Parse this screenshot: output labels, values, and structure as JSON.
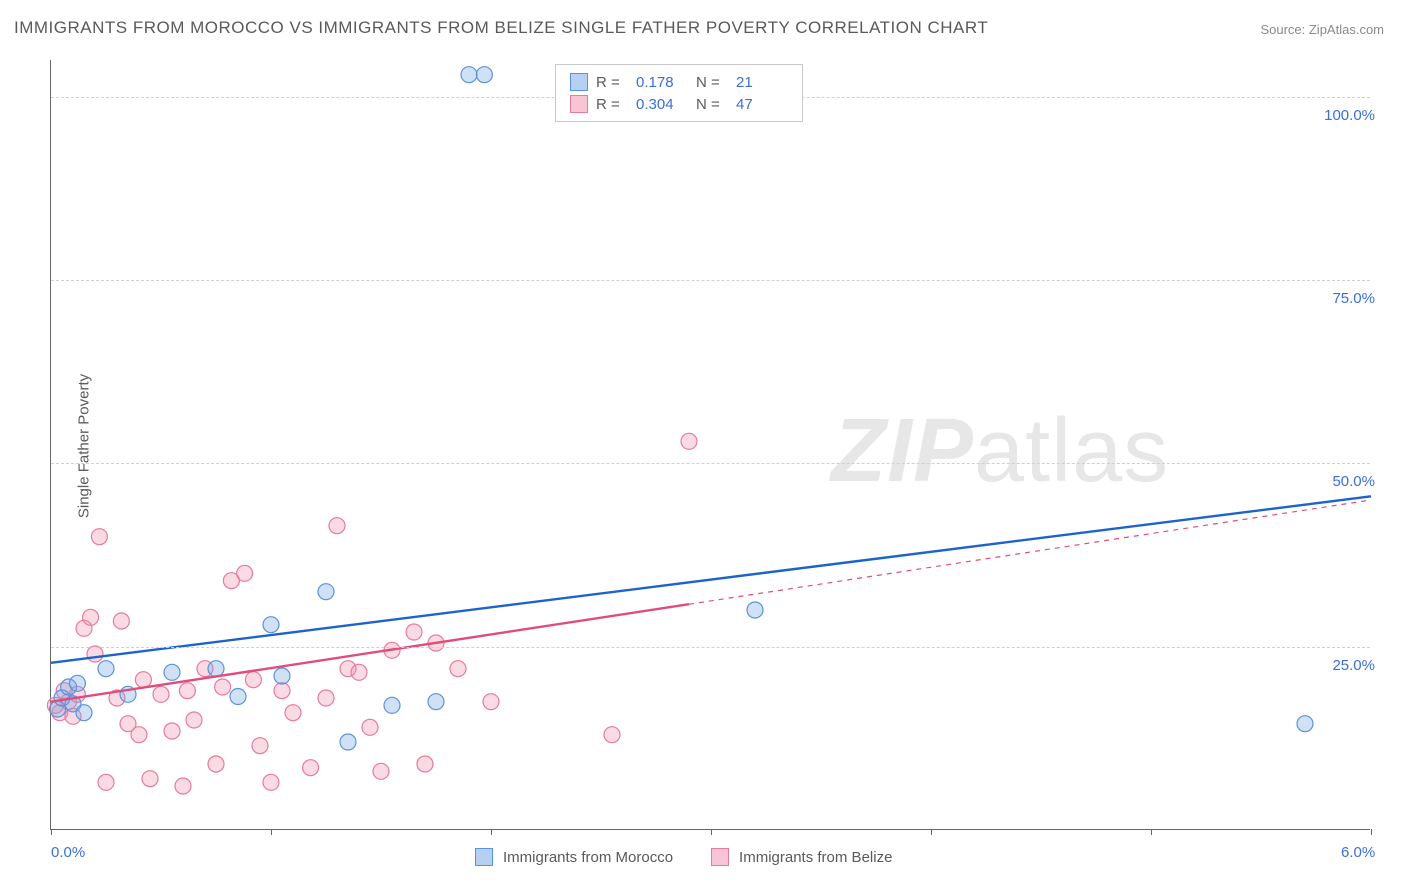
{
  "title": "IMMIGRANTS FROM MOROCCO VS IMMIGRANTS FROM BELIZE SINGLE FATHER POVERTY CORRELATION CHART",
  "source": "Source: ZipAtlas.com",
  "y_axis_label": "Single Father Poverty",
  "watermark": {
    "bold": "ZIP",
    "rest": "atlas"
  },
  "chart": {
    "type": "scatter",
    "xlim": [
      0.0,
      6.0
    ],
    "ylim": [
      0.0,
      105.0
    ],
    "x_ticks": [
      0.0,
      1.0,
      2.0,
      3.0,
      4.0,
      5.0,
      6.0
    ],
    "x_tick_labels_shown": {
      "0.0": "0.0%",
      "6.0": "6.0%"
    },
    "y_gridlines": [
      25.0,
      50.0,
      75.0,
      100.0
    ],
    "y_tick_labels": {
      "25.0": "25.0%",
      "50.0": "50.0%",
      "75.0": "75.0%",
      "100.0": "100.0%"
    },
    "grid_color": "#d0d0d0",
    "background_color": "#ffffff",
    "marker_radius": 8,
    "marker_stroke_width": 1.2,
    "trend_line_width": 2.4,
    "series": [
      {
        "name": "Immigrants from Morocco",
        "fill": "rgba(120,170,230,0.35)",
        "stroke": "#5b93db",
        "line_color": "#1d63c9",
        "R": "0.178",
        "N": "21",
        "trend": {
          "x1": 0.0,
          "y1": 22.8,
          "x2": 6.0,
          "y2": 45.5,
          "dashed_from_x": null
        },
        "points": [
          [
            0.03,
            16.5
          ],
          [
            0.05,
            18.0
          ],
          [
            0.08,
            19.5
          ],
          [
            0.1,
            17.2
          ],
          [
            0.12,
            20.0
          ],
          [
            0.25,
            22.0
          ],
          [
            0.35,
            18.5
          ],
          [
            0.55,
            21.5
          ],
          [
            0.75,
            22.0
          ],
          [
            0.85,
            18.2
          ],
          [
            1.0,
            28.0
          ],
          [
            1.05,
            21.0
          ],
          [
            1.25,
            32.5
          ],
          [
            1.35,
            12.0
          ],
          [
            1.55,
            17.0
          ],
          [
            1.75,
            17.5
          ],
          [
            1.9,
            103.0
          ],
          [
            1.97,
            103.0
          ],
          [
            3.2,
            30.0
          ],
          [
            5.7,
            14.5
          ],
          [
            0.15,
            16.0
          ]
        ]
      },
      {
        "name": "Immigrants from Belize",
        "fill": "rgba(240,150,175,0.35)",
        "stroke": "#e77aa0",
        "line_color": "#e14d7b",
        "R": "0.304",
        "N": "47",
        "trend": {
          "x1": 0.0,
          "y1": 17.5,
          "x2": 6.0,
          "y2": 45.0,
          "dashed_from_x": 2.9
        },
        "points": [
          [
            0.04,
            16.0
          ],
          [
            0.06,
            19.0
          ],
          [
            0.08,
            17.5
          ],
          [
            0.1,
            15.5
          ],
          [
            0.12,
            18.5
          ],
          [
            0.15,
            27.5
          ],
          [
            0.18,
            29.0
          ],
          [
            0.2,
            24.0
          ],
          [
            0.22,
            40.0
          ],
          [
            0.25,
            6.5
          ],
          [
            0.3,
            18.0
          ],
          [
            0.32,
            28.5
          ],
          [
            0.35,
            14.5
          ],
          [
            0.4,
            13.0
          ],
          [
            0.42,
            20.5
          ],
          [
            0.45,
            7.0
          ],
          [
            0.5,
            18.5
          ],
          [
            0.55,
            13.5
          ],
          [
            0.6,
            6.0
          ],
          [
            0.62,
            19.0
          ],
          [
            0.65,
            15.0
          ],
          [
            0.7,
            22.0
          ],
          [
            0.75,
            9.0
          ],
          [
            0.78,
            19.5
          ],
          [
            0.82,
            34.0
          ],
          [
            0.88,
            35.0
          ],
          [
            0.92,
            20.5
          ],
          [
            0.95,
            11.5
          ],
          [
            1.0,
            6.5
          ],
          [
            1.05,
            19.0
          ],
          [
            1.1,
            16.0
          ],
          [
            1.18,
            8.5
          ],
          [
            1.25,
            18.0
          ],
          [
            1.3,
            41.5
          ],
          [
            1.35,
            22.0
          ],
          [
            1.4,
            21.5
          ],
          [
            1.45,
            14.0
          ],
          [
            1.5,
            8.0
          ],
          [
            1.55,
            24.5
          ],
          [
            1.65,
            27.0
          ],
          [
            1.7,
            9.0
          ],
          [
            1.75,
            25.5
          ],
          [
            1.85,
            22.0
          ],
          [
            2.0,
            17.5
          ],
          [
            2.55,
            13.0
          ],
          [
            2.9,
            53.0
          ],
          [
            0.02,
            17.0
          ]
        ]
      }
    ]
  },
  "legend_top_labels": {
    "R": "R =",
    "N": "N ="
  },
  "legend_bottom": [
    {
      "label": "Immigrants from Morocco",
      "fill": "rgba(120,170,230,0.55)",
      "stroke": "#5b93db"
    },
    {
      "label": "Immigrants from Belize",
      "fill": "rgba(240,150,175,0.55)",
      "stroke": "#e77aa0"
    }
  ]
}
